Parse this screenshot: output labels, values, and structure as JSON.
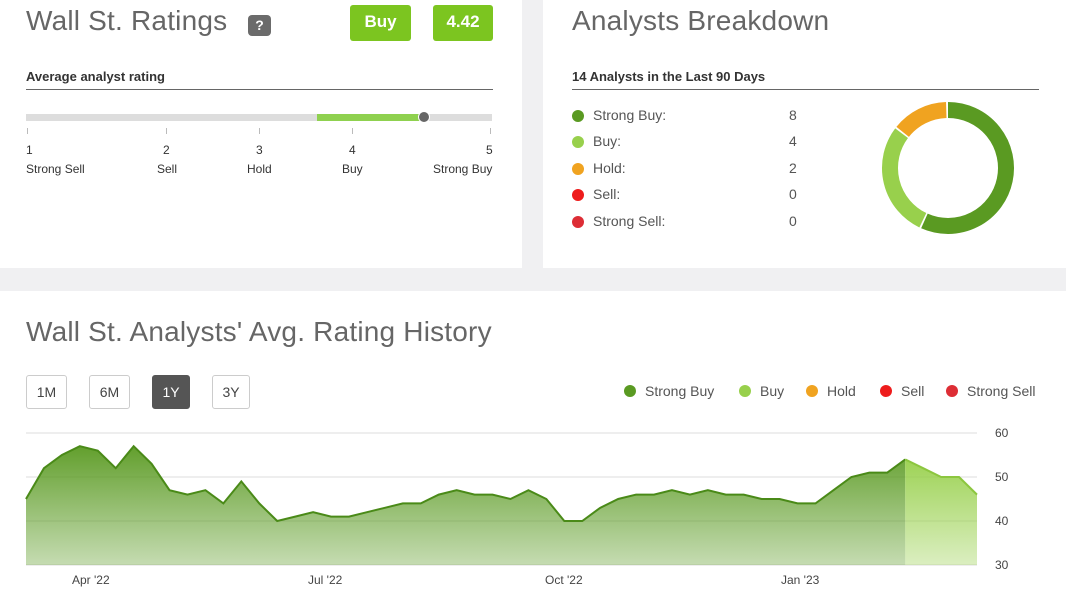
{
  "ratings": {
    "title": "Wall St. Ratings",
    "help": "?",
    "rating_label": "Buy",
    "rating_value": "4.42",
    "subtitle": "Average analyst rating",
    "scale": [
      {
        "num": "1",
        "label": "Strong Sell"
      },
      {
        "num": "2",
        "label": "Sell"
      },
      {
        "num": "3",
        "label": "Hold"
      },
      {
        "num": "4",
        "label": "Buy"
      },
      {
        "num": "5",
        "label": "Strong Buy"
      }
    ]
  },
  "breakdown": {
    "title": "Analysts Breakdown",
    "subtitle": "14 Analysts in the Last 90 Days",
    "rows": [
      {
        "label": "Strong Buy:",
        "count": "8",
        "color": "#5a9a22"
      },
      {
        "label": "Buy:",
        "count": "4",
        "color": "#98d04c"
      },
      {
        "label": "Hold:",
        "count": "2",
        "color": "#f0a320"
      },
      {
        "label": "Sell:",
        "count": "0",
        "color": "#ee1c1c"
      },
      {
        "label": "Strong Sell:",
        "count": "0",
        "color": "#dd2d35"
      }
    ]
  },
  "history": {
    "title": "Wall St. Analysts' Avg. Rating History",
    "periods": [
      "1M",
      "6M",
      "1Y",
      "3Y"
    ],
    "active_period": "1Y",
    "legend": [
      {
        "label": "Strong Buy",
        "color": "#5a9a22"
      },
      {
        "label": "Buy",
        "color": "#98d04c"
      },
      {
        "label": "Hold",
        "color": "#f0a320"
      },
      {
        "label": "Sell",
        "color": "#ee1c1c"
      },
      {
        "label": "Strong Sell",
        "color": "#dd2d35"
      }
    ]
  },
  "chart_data": {
    "type": "area",
    "x_tick_labels": [
      "Apr '22",
      "Jul '22",
      "Oct '22",
      "Jan '23"
    ],
    "y_tick_labels": [
      "60",
      "50",
      "40",
      "30"
    ],
    "ylim": [
      30,
      60
    ],
    "grid": true,
    "series": [
      {
        "name": "Strong Buy",
        "x": [
          "2022-03-01",
          "2022-03-08",
          "2022-03-15",
          "2022-03-22",
          "2022-03-29",
          "2022-04-05",
          "2022-04-12",
          "2022-04-19",
          "2022-04-26",
          "2022-05-03",
          "2022-05-10",
          "2022-05-17",
          "2022-05-24",
          "2022-05-31",
          "2022-06-07",
          "2022-06-14",
          "2022-06-21",
          "2022-06-28",
          "2022-07-05",
          "2022-07-12",
          "2022-07-19",
          "2022-07-26",
          "2022-08-02",
          "2022-08-09",
          "2022-08-16",
          "2022-08-23",
          "2022-08-30",
          "2022-09-06",
          "2022-09-13",
          "2022-09-20",
          "2022-09-27",
          "2022-10-04",
          "2022-10-11",
          "2022-10-18",
          "2022-10-25",
          "2022-11-01",
          "2022-11-08",
          "2022-11-15",
          "2022-11-22",
          "2022-11-29",
          "2022-12-06",
          "2022-12-13",
          "2022-12-20",
          "2022-12-27",
          "2023-01-03",
          "2023-01-10",
          "2023-01-17",
          "2023-01-24",
          "2023-01-31",
          "2023-02-07",
          "2023-02-14",
          "2023-02-21",
          "2023-02-28",
          "2023-03-07"
        ],
        "values": [
          45,
          52,
          55,
          57,
          56,
          52,
          57,
          53,
          47,
          46,
          47,
          44,
          49,
          44,
          40,
          41,
          42,
          41,
          41,
          42,
          43,
          44,
          44,
          46,
          47,
          46,
          46,
          45,
          47,
          45,
          40,
          40,
          43,
          45,
          46,
          46,
          47,
          46,
          47,
          46,
          46,
          45,
          45,
          44,
          44,
          47,
          50,
          51,
          51,
          54,
          52,
          50,
          50,
          46
        ]
      }
    ]
  }
}
